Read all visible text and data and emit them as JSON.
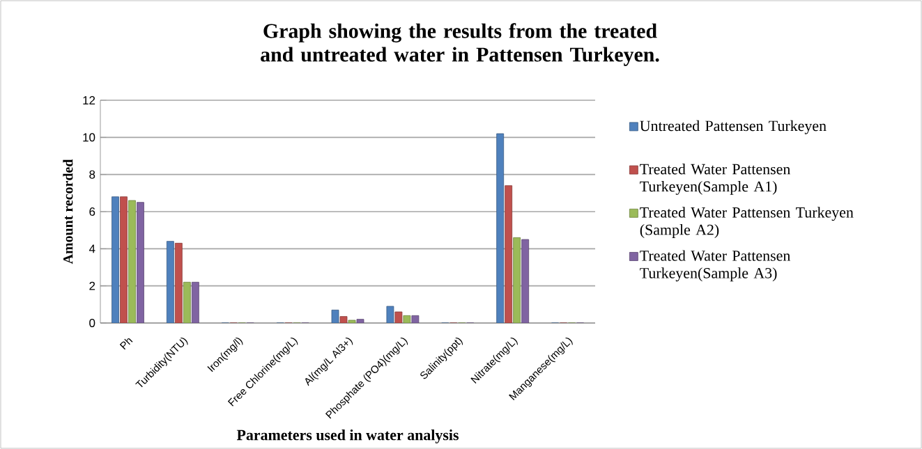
{
  "chart_data": {
    "type": "bar",
    "title": "Graph showing the results from the treated and untreated water in Pattensen Turkeyen.",
    "xlabel": "Parameters used in water analysis",
    "ylabel": "Amount recorded",
    "categories": [
      "Ph",
      "Turbidity(NTU)",
      "Iron(mg/l)",
      "Free Chlorine(mg/L)",
      "Al(mg/L  Al3+)",
      "Phosphate (PO4)(mg/L)",
      "Salinity(ppt)",
      "Nitrate(mg/L)",
      "Manganese(mg/L)"
    ],
    "series": [
      {
        "name": "Untreated Pattensen Turkeyen",
        "color": "#4f81bd",
        "values": [
          6.8,
          4.4,
          0,
          0,
          0.7,
          0.9,
          0,
          10.2,
          0
        ]
      },
      {
        "name": "Treated Water Pattensen Turkeyen(Sample A1)",
        "color": "#c0504d",
        "values": [
          6.8,
          4.3,
          0,
          0,
          0.35,
          0.6,
          0,
          7.4,
          0
        ]
      },
      {
        "name": "Treated Water Pattensen Turkeyen (Sample A2)",
        "color": "#9bbb59",
        "values": [
          6.6,
          2.2,
          0,
          0,
          0.15,
          0.4,
          0,
          4.6,
          0
        ]
      },
      {
        "name": "Treated Water Pattensen Turkeyen(Sample A3)",
        "color": "#8064a2",
        "values": [
          6.5,
          2.2,
          0,
          0,
          0.2,
          0.4,
          0,
          4.5,
          0
        ]
      }
    ],
    "ylim": [
      0,
      12
    ],
    "yticks": [
      0,
      2,
      4,
      6,
      8,
      10,
      12
    ],
    "grid": "y",
    "legend": "right"
  }
}
